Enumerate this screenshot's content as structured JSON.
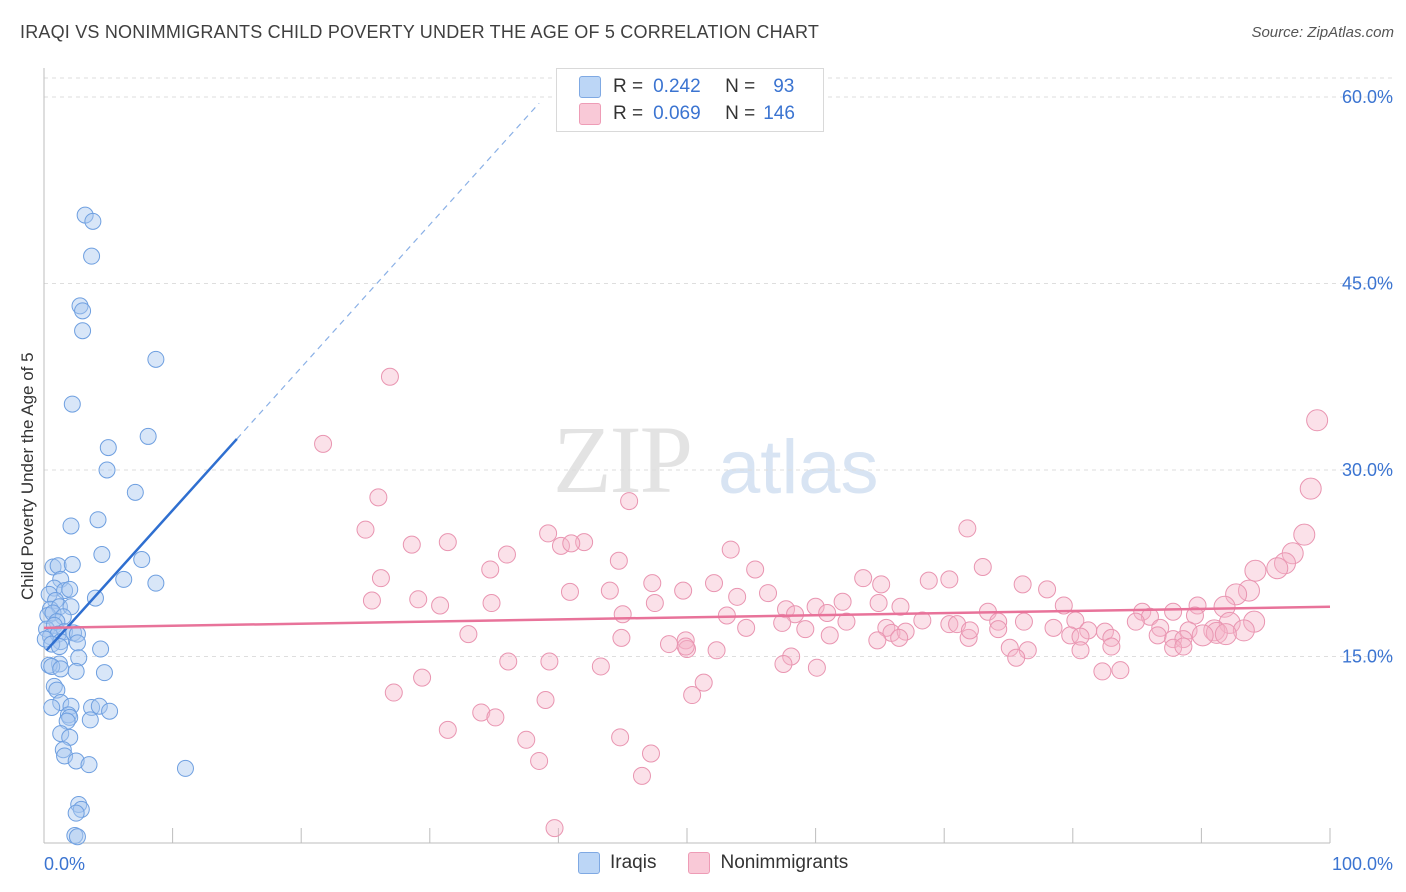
{
  "header": {
    "title": "IRAQI VS NONIMMIGRANTS CHILD POVERTY UNDER THE AGE OF 5 CORRELATION CHART",
    "source": "Source: ZipAtlas.com"
  },
  "watermark": {
    "zip": "ZIP",
    "atlas": "atlas"
  },
  "legend": {
    "r_label": "R =",
    "n_label": "N =",
    "series": [
      {
        "name": "Iraqis",
        "r": "0.242",
        "n": "93",
        "color": "#a8c8f0"
      },
      {
        "name": "Nonimmigrants",
        "r": "0.069",
        "n": "146",
        "color": "#f5b5c8"
      }
    ]
  },
  "colors": {
    "iraqi_line": "#2f6fd0",
    "nonimm_line": "#e8739a",
    "axis_text": "#3b74d1",
    "grid": "#dedede"
  },
  "chart_data": {
    "type": "scatter",
    "title": "IRAQI VS NONIMMIGRANTS CHILD POVERTY UNDER THE AGE OF 5 CORRELATION CHART",
    "xlabel": "",
    "ylabel": "Child Poverty Under the Age of 5",
    "xlim": [
      0,
      100
    ],
    "ylim": [
      0,
      62
    ],
    "x_tick_labels": [
      "0.0%",
      "100.0%"
    ],
    "y_ticks": [
      15,
      30,
      45,
      60
    ],
    "y_tick_labels": [
      "15.0%",
      "30.0%",
      "45.0%",
      "60.0%"
    ],
    "grid": true,
    "legend_position": "top-center",
    "series": [
      {
        "name": "Iraqis",
        "r": 0.242,
        "n": 93,
        "trend": {
          "solid": [
            [
              0.2,
              15.5
            ],
            [
              15,
              32.5
            ]
          ],
          "dashed": [
            [
              15,
              32.5
            ],
            [
              38.5,
              59.5
            ]
          ]
        },
        "points": [
          [
            3.2,
            50.5
          ],
          [
            3.8,
            50.0
          ],
          [
            3.7,
            47.2
          ],
          [
            2.8,
            43.2
          ],
          [
            3.0,
            42.8
          ],
          [
            3.0,
            41.2
          ],
          [
            8.7,
            38.9
          ],
          [
            2.2,
            35.3
          ],
          [
            8.1,
            32.7
          ],
          [
            5.0,
            31.8
          ],
          [
            4.9,
            30.0
          ],
          [
            7.1,
            28.2
          ],
          [
            4.2,
            26.0
          ],
          [
            2.1,
            25.5
          ],
          [
            4.5,
            23.2
          ],
          [
            7.6,
            22.8
          ],
          [
            0.7,
            22.2
          ],
          [
            1.1,
            22.3
          ],
          [
            2.2,
            22.4
          ],
          [
            6.2,
            21.2
          ],
          [
            1.3,
            21.2
          ],
          [
            8.7,
            20.9
          ],
          [
            0.8,
            20.5
          ],
          [
            1.6,
            20.3
          ],
          [
            2.0,
            20.4
          ],
          [
            4.0,
            19.7
          ],
          [
            0.4,
            20.0
          ],
          [
            0.9,
            19.5
          ],
          [
            0.5,
            18.8
          ],
          [
            1.2,
            19.0
          ],
          [
            2.1,
            19.0
          ],
          [
            0.3,
            18.3
          ],
          [
            0.7,
            18.5
          ],
          [
            1.5,
            18.2
          ],
          [
            1.0,
            17.8
          ],
          [
            0.2,
            17.2
          ],
          [
            0.8,
            17.5
          ],
          [
            1.6,
            17.0
          ],
          [
            2.3,
            16.9
          ],
          [
            0.5,
            16.6
          ],
          [
            1.1,
            16.8
          ],
          [
            2.6,
            16.8
          ],
          [
            0.1,
            16.4
          ],
          [
            1.3,
            16.2
          ],
          [
            2.6,
            16.1
          ],
          [
            0.6,
            16.0
          ],
          [
            1.2,
            15.8
          ],
          [
            4.4,
            15.6
          ],
          [
            2.7,
            14.9
          ],
          [
            1.2,
            14.4
          ],
          [
            0.4,
            14.3
          ],
          [
            0.6,
            14.2
          ],
          [
            1.3,
            14.0
          ],
          [
            2.5,
            13.8
          ],
          [
            4.7,
            13.7
          ],
          [
            0.8,
            12.6
          ],
          [
            1.0,
            12.3
          ],
          [
            1.3,
            11.3
          ],
          [
            2.1,
            11.0
          ],
          [
            0.6,
            10.9
          ],
          [
            3.7,
            10.9
          ],
          [
            4.3,
            11.0
          ],
          [
            5.1,
            10.6
          ],
          [
            1.9,
            10.3
          ],
          [
            2.0,
            10.1
          ],
          [
            1.8,
            9.8
          ],
          [
            3.6,
            9.9
          ],
          [
            1.3,
            8.8
          ],
          [
            2.0,
            8.5
          ],
          [
            1.5,
            7.5
          ],
          [
            1.6,
            7.0
          ],
          [
            2.5,
            6.6
          ],
          [
            3.5,
            6.3
          ],
          [
            11.0,
            6.0
          ],
          [
            2.7,
            3.1
          ],
          [
            2.9,
            2.7
          ],
          [
            2.5,
            2.4
          ],
          [
            2.4,
            0.6
          ],
          [
            2.6,
            0.5
          ]
        ]
      },
      {
        "name": "Nonimmigrants",
        "r": 0.069,
        "n": 146,
        "trend": {
          "solid": [
            [
              0,
              17.3
            ],
            [
              100,
              19.0
            ]
          ]
        },
        "points": [
          [
            26.9,
            37.5
          ],
          [
            21.7,
            32.1
          ],
          [
            99.0,
            34.0
          ],
          [
            98.5,
            28.5
          ],
          [
            26.0,
            27.8
          ],
          [
            45.5,
            27.5
          ],
          [
            25.0,
            25.2
          ],
          [
            71.8,
            25.3
          ],
          [
            98.0,
            24.8
          ],
          [
            39.2,
            24.9
          ],
          [
            28.6,
            24.0
          ],
          [
            31.4,
            24.2
          ],
          [
            40.2,
            23.9
          ],
          [
            42.0,
            24.2
          ],
          [
            41.0,
            24.1
          ],
          [
            53.4,
            23.6
          ],
          [
            36.0,
            23.2
          ],
          [
            44.7,
            22.7
          ],
          [
            55.3,
            22.0
          ],
          [
            73.0,
            22.2
          ],
          [
            97.1,
            23.3
          ],
          [
            96.5,
            22.5
          ],
          [
            95.9,
            22.1
          ],
          [
            94.2,
            21.9
          ],
          [
            34.7,
            22.0
          ],
          [
            26.2,
            21.3
          ],
          [
            63.7,
            21.3
          ],
          [
            68.8,
            21.1
          ],
          [
            70.4,
            21.2
          ],
          [
            47.3,
            20.9
          ],
          [
            52.1,
            20.9
          ],
          [
            76.1,
            20.8
          ],
          [
            65.1,
            20.8
          ],
          [
            78.0,
            20.4
          ],
          [
            49.7,
            20.3
          ],
          [
            44.0,
            20.3
          ],
          [
            40.9,
            20.2
          ],
          [
            56.3,
            20.1
          ],
          [
            93.7,
            20.3
          ],
          [
            92.7,
            20.0
          ],
          [
            53.9,
            19.8
          ],
          [
            25.5,
            19.5
          ],
          [
            29.1,
            19.6
          ],
          [
            30.8,
            19.1
          ],
          [
            34.8,
            19.3
          ],
          [
            47.5,
            19.3
          ],
          [
            64.9,
            19.3
          ],
          [
            66.6,
            19.0
          ],
          [
            62.1,
            19.4
          ],
          [
            79.3,
            19.1
          ],
          [
            89.7,
            19.1
          ],
          [
            91.8,
            19.0
          ],
          [
            60.0,
            19.0
          ],
          [
            60.9,
            18.5
          ],
          [
            57.7,
            18.8
          ],
          [
            58.4,
            18.4
          ],
          [
            45.0,
            18.4
          ],
          [
            53.1,
            18.3
          ],
          [
            73.4,
            18.6
          ],
          [
            76.2,
            17.8
          ],
          [
            85.4,
            18.6
          ],
          [
            87.8,
            18.6
          ],
          [
            86.0,
            18.2
          ],
          [
            89.5,
            18.3
          ],
          [
            94.1,
            17.8
          ],
          [
            62.4,
            17.8
          ],
          [
            68.3,
            17.9
          ],
          [
            74.2,
            17.8
          ],
          [
            57.4,
            17.7
          ],
          [
            70.4,
            17.6
          ],
          [
            71.0,
            17.6
          ],
          [
            80.2,
            17.9
          ],
          [
            84.9,
            17.8
          ],
          [
            92.2,
            17.7
          ],
          [
            65.5,
            17.3
          ],
          [
            78.5,
            17.3
          ],
          [
            86.8,
            17.3
          ],
          [
            89.0,
            17.1
          ],
          [
            91.0,
            17.1
          ],
          [
            93.3,
            17.1
          ],
          [
            54.6,
            17.3
          ],
          [
            59.2,
            17.2
          ],
          [
            65.9,
            16.9
          ],
          [
            67.0,
            17.0
          ],
          [
            74.2,
            17.2
          ],
          [
            81.2,
            17.1
          ],
          [
            82.5,
            17.0
          ],
          [
            86.6,
            16.7
          ],
          [
            91.2,
            16.9
          ],
          [
            91.9,
            16.8
          ],
          [
            90.1,
            16.7
          ],
          [
            33.0,
            16.8
          ],
          [
            44.9,
            16.5
          ],
          [
            61.1,
            16.7
          ],
          [
            64.8,
            16.3
          ],
          [
            66.5,
            16.5
          ],
          [
            71.9,
            16.5
          ],
          [
            72.0,
            17.1
          ],
          [
            79.8,
            16.7
          ],
          [
            80.6,
            16.6
          ],
          [
            83.0,
            16.5
          ],
          [
            87.8,
            16.4
          ],
          [
            88.6,
            16.4
          ],
          [
            49.9,
            16.3
          ],
          [
            48.6,
            16.0
          ],
          [
            52.3,
            15.5
          ],
          [
            50.0,
            15.6
          ],
          [
            80.6,
            15.5
          ],
          [
            75.1,
            15.7
          ],
          [
            76.5,
            15.5
          ],
          [
            83.0,
            15.8
          ],
          [
            87.8,
            15.7
          ],
          [
            88.6,
            15.8
          ],
          [
            49.9,
            15.8
          ],
          [
            58.1,
            15.0
          ],
          [
            36.1,
            14.6
          ],
          [
            39.3,
            14.6
          ],
          [
            43.3,
            14.2
          ],
          [
            57.5,
            14.4
          ],
          [
            60.1,
            14.1
          ],
          [
            75.6,
            14.9
          ],
          [
            82.3,
            13.8
          ],
          [
            83.7,
            13.9
          ],
          [
            29.4,
            13.3
          ],
          [
            51.3,
            12.9
          ],
          [
            27.2,
            12.1
          ],
          [
            50.4,
            11.9
          ],
          [
            39.0,
            11.5
          ],
          [
            34.0,
            10.5
          ],
          [
            35.1,
            10.1
          ],
          [
            31.4,
            9.1
          ],
          [
            37.5,
            8.3
          ],
          [
            44.8,
            8.5
          ],
          [
            47.2,
            7.2
          ],
          [
            38.5,
            6.6
          ],
          [
            46.5,
            5.4
          ],
          [
            39.7,
            1.2
          ]
        ]
      }
    ]
  }
}
